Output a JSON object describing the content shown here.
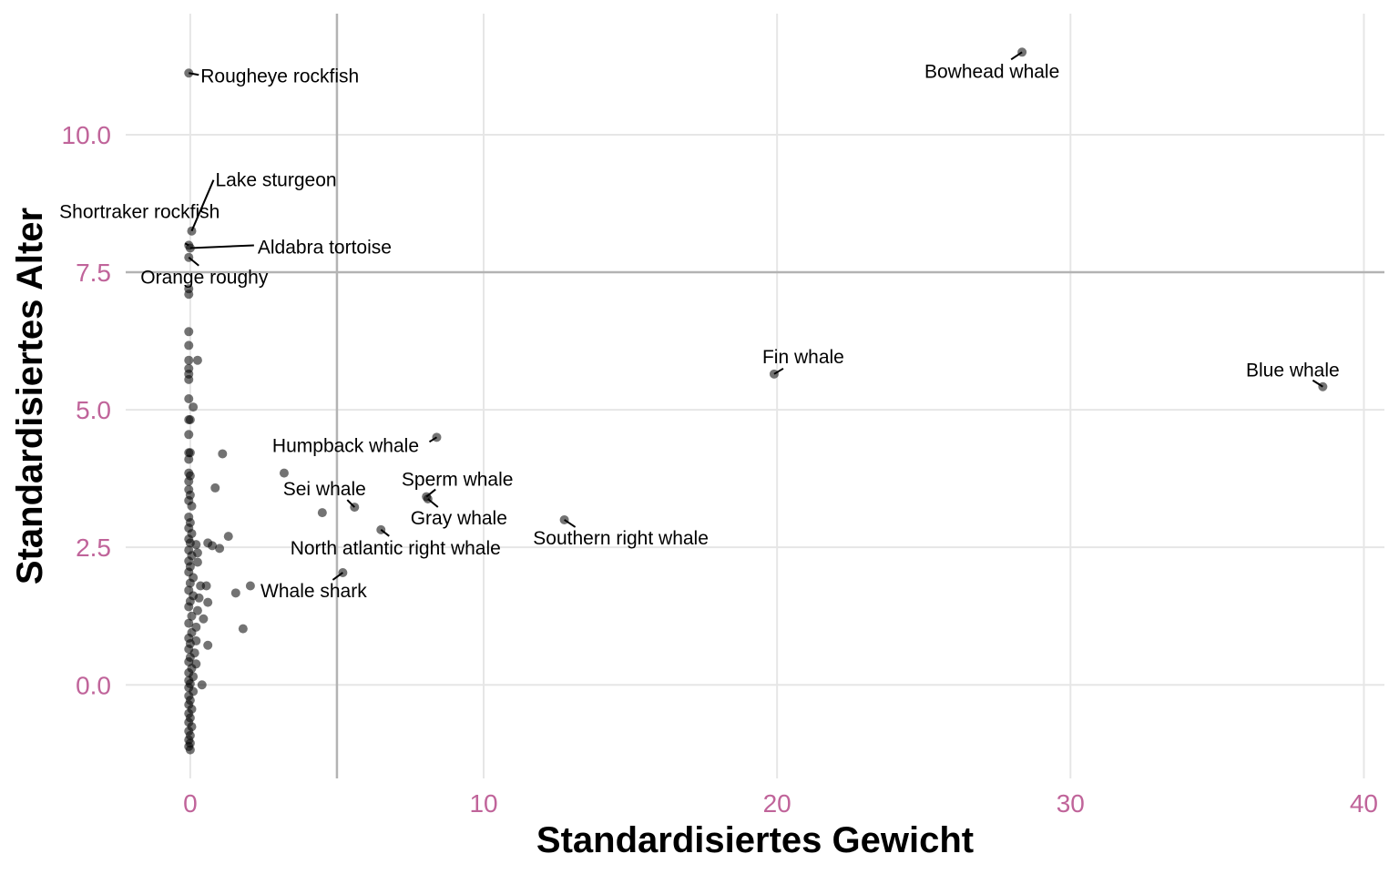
{
  "chart_data": {
    "type": "scatter",
    "title": "",
    "xlabel": "Standardisiertes Gewicht",
    "ylabel": "Standardisiertes Alter",
    "xlim": [
      -2.2,
      40.7
    ],
    "ylim": [
      -1.7,
      12.2
    ],
    "x_ticks": [
      0,
      10,
      20,
      30,
      40
    ],
    "x_tick_labels": [
      "0",
      "10",
      "20",
      "30",
      "40"
    ],
    "y_ticks": [
      0,
      2.5,
      5,
      7.5,
      10
    ],
    "y_tick_labels": [
      "0.0",
      "2.5",
      "5.0",
      "7.5",
      "10.0"
    ],
    "grid": true,
    "legend": "none",
    "reference_lines": {
      "vertical_x": 5,
      "horizontal_y": 7.5
    },
    "colors": {
      "point": "#000000",
      "tick_label": "#c0649a",
      "grid": "#e6e6e6",
      "reference_line": "#b3b3b3",
      "leader_line": "#000000"
    },
    "labeled_points": [
      {
        "name": "Rougheye rockfish",
        "x": -0.05,
        "y": 11.12
      },
      {
        "name": "Bowhead whale",
        "x": 28.35,
        "y": 11.5
      },
      {
        "name": "Lake sturgeon",
        "x": 0.05,
        "y": 8.25
      },
      {
        "name": "Shortraker rockfish",
        "x": -0.05,
        "y": 7.99
      },
      {
        "name": "Aldabra tortoise",
        "x": 0.0,
        "y": 7.94
      },
      {
        "name": "Orange roughy",
        "x": -0.05,
        "y": 7.77
      },
      {
        "name": "Fin whale",
        "x": 19.9,
        "y": 5.65
      },
      {
        "name": "Blue whale",
        "x": 38.6,
        "y": 5.42
      },
      {
        "name": "Humpback whale",
        "x": 8.4,
        "y": 4.5
      },
      {
        "name": "Sperm whale",
        "x": 8.05,
        "y": 3.42
      },
      {
        "name": "Sei whale",
        "x": 5.6,
        "y": 3.23
      },
      {
        "name": "Gray whale",
        "x": 8.1,
        "y": 3.38
      },
      {
        "name": "Southern right whale",
        "x": 12.75,
        "y": 3.0
      },
      {
        "name": "North atlantic right whale",
        "x": 6.5,
        "y": 2.82
      },
      {
        "name": "Whale shark",
        "x": 5.2,
        "y": 2.04
      }
    ],
    "other_points": [
      {
        "x": -0.05,
        "y": 7.2
      },
      {
        "x": -0.05,
        "y": 7.1
      },
      {
        "x": -0.05,
        "y": 6.42
      },
      {
        "x": -0.05,
        "y": 6.17
      },
      {
        "x": -0.05,
        "y": 5.9
      },
      {
        "x": 0.25,
        "y": 5.9
      },
      {
        "x": -0.05,
        "y": 5.75
      },
      {
        "x": -0.05,
        "y": 5.65
      },
      {
        "x": -0.05,
        "y": 5.55
      },
      {
        "x": -0.05,
        "y": 5.2
      },
      {
        "x": 0.1,
        "y": 5.05
      },
      {
        "x": -0.05,
        "y": 4.82
      },
      {
        "x": 0.0,
        "y": 4.82
      },
      {
        "x": -0.05,
        "y": 4.55
      },
      {
        "x": -0.05,
        "y": 4.22
      },
      {
        "x": 0.0,
        "y": 4.22
      },
      {
        "x": -0.05,
        "y": 4.1
      },
      {
        "x": 1.1,
        "y": 4.2
      },
      {
        "x": -0.05,
        "y": 3.85
      },
      {
        "x": 0.0,
        "y": 3.8
      },
      {
        "x": -0.05,
        "y": 3.7
      },
      {
        "x": 3.2,
        "y": 3.85
      },
      {
        "x": 0.85,
        "y": 3.58
      },
      {
        "x": -0.05,
        "y": 3.55
      },
      {
        "x": 0.0,
        "y": 3.45
      },
      {
        "x": -0.05,
        "y": 3.35
      },
      {
        "x": 0.05,
        "y": 3.25
      },
      {
        "x": 4.5,
        "y": 3.13
      },
      {
        "x": -0.05,
        "y": 3.05
      },
      {
        "x": 0.0,
        "y": 2.95
      },
      {
        "x": -0.05,
        "y": 2.85
      },
      {
        "x": 0.05,
        "y": 2.75
      },
      {
        "x": 1.3,
        "y": 2.7
      },
      {
        "x": -0.05,
        "y": 2.65
      },
      {
        "x": 0.0,
        "y": 2.58
      },
      {
        "x": 0.6,
        "y": 2.58
      },
      {
        "x": 0.75,
        "y": 2.53
      },
      {
        "x": 1.0,
        "y": 2.48
      },
      {
        "x": 0.2,
        "y": 2.55
      },
      {
        "x": -0.05,
        "y": 2.45
      },
      {
        "x": 0.25,
        "y": 2.4
      },
      {
        "x": 0.05,
        "y": 2.35
      },
      {
        "x": -0.05,
        "y": 2.25
      },
      {
        "x": 0.25,
        "y": 2.23
      },
      {
        "x": 0.0,
        "y": 2.15
      },
      {
        "x": -0.05,
        "y": 2.05
      },
      {
        "x": 0.1,
        "y": 1.95
      },
      {
        "x": 0.0,
        "y": 1.85
      },
      {
        "x": 0.35,
        "y": 1.8
      },
      {
        "x": 0.55,
        "y": 1.8
      },
      {
        "x": 2.05,
        "y": 1.8
      },
      {
        "x": 1.55,
        "y": 1.67
      },
      {
        "x": -0.05,
        "y": 1.72
      },
      {
        "x": 0.1,
        "y": 1.62
      },
      {
        "x": 0.3,
        "y": 1.58
      },
      {
        "x": 0.0,
        "y": 1.52
      },
      {
        "x": 0.6,
        "y": 1.5
      },
      {
        "x": -0.05,
        "y": 1.42
      },
      {
        "x": 0.25,
        "y": 1.35
      },
      {
        "x": 0.05,
        "y": 1.25
      },
      {
        "x": 0.45,
        "y": 1.2
      },
      {
        "x": -0.05,
        "y": 1.12
      },
      {
        "x": 0.2,
        "y": 1.05
      },
      {
        "x": 1.8,
        "y": 1.02
      },
      {
        "x": 0.05,
        "y": 0.95
      },
      {
        "x": -0.05,
        "y": 0.85
      },
      {
        "x": 0.2,
        "y": 0.8
      },
      {
        "x": 0.0,
        "y": 0.75
      },
      {
        "x": 0.6,
        "y": 0.72
      },
      {
        "x": -0.05,
        "y": 0.65
      },
      {
        "x": 0.15,
        "y": 0.58
      },
      {
        "x": 0.0,
        "y": 0.5
      },
      {
        "x": -0.05,
        "y": 0.42
      },
      {
        "x": 0.2,
        "y": 0.38
      },
      {
        "x": 0.05,
        "y": 0.3
      },
      {
        "x": -0.05,
        "y": 0.22
      },
      {
        "x": 0.1,
        "y": 0.15
      },
      {
        "x": -0.05,
        "y": 0.08
      },
      {
        "x": 0.0,
        "y": 0.02
      },
      {
        "x": 0.4,
        "y": 0.0
      },
      {
        "x": -0.05,
        "y": -0.05
      },
      {
        "x": 0.1,
        "y": -0.12
      },
      {
        "x": -0.05,
        "y": -0.2
      },
      {
        "x": 0.0,
        "y": -0.28
      },
      {
        "x": -0.05,
        "y": -0.36
      },
      {
        "x": 0.05,
        "y": -0.44
      },
      {
        "x": -0.05,
        "y": -0.52
      },
      {
        "x": 0.0,
        "y": -0.6
      },
      {
        "x": -0.05,
        "y": -0.68
      },
      {
        "x": 0.05,
        "y": -0.76
      },
      {
        "x": -0.05,
        "y": -0.84
      },
      {
        "x": 0.0,
        "y": -0.92
      },
      {
        "x": -0.05,
        "y": -1.0
      },
      {
        "x": 0.0,
        "y": -1.06
      },
      {
        "x": -0.05,
        "y": -1.12
      },
      {
        "x": 0.0,
        "y": -1.18
      }
    ]
  }
}
